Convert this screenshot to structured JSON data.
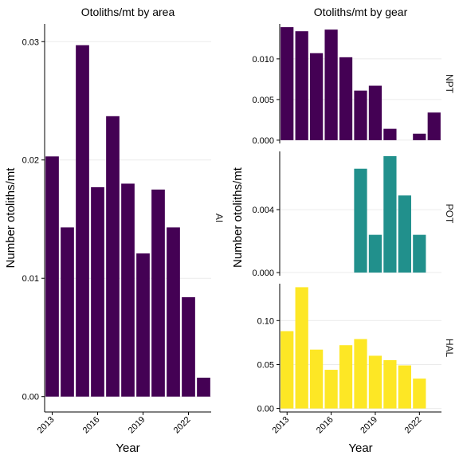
{
  "chart_data": [
    {
      "type": "bar",
      "title": "Otoliths/mt by area",
      "xlabel": "Year",
      "ylabel": "Number otoliths/mt",
      "ylim": [
        -0.0013,
        0.0315
      ],
      "yticks": [
        "0.00",
        "0.01",
        "0.02",
        "0.03"
      ],
      "ytick_values": [
        0,
        0.01,
        0.02,
        0.03
      ],
      "xticks": [
        2013,
        2016,
        2019,
        2022
      ],
      "color": "#440154",
      "series": [
        {
          "name": "AI",
          "x": [
            2013,
            2014,
            2015,
            2016,
            2017,
            2018,
            2019,
            2020,
            2021,
            2022,
            2023
          ],
          "values": [
            0.0203,
            0.0143,
            0.0297,
            0.0177,
            0.0237,
            0.018,
            0.0121,
            0.0175,
            0.0143,
            0.0084,
            0.0016
          ]
        }
      ]
    },
    {
      "type": "bar",
      "title": "Otoliths/mt by gear",
      "xlabel": "Year",
      "ylabel": "Number otoliths/mt",
      "xticks": [
        2013,
        2016,
        2019,
        2022
      ],
      "facets": [
        {
          "name": "NPT",
          "color": "#440154",
          "ylim": [
            -0.0004,
            0.0143
          ],
          "yticks": [
            "0.000",
            "0.005",
            "0.010"
          ],
          "ytick_values": [
            0,
            0.005,
            0.01
          ],
          "x": [
            2013,
            2014,
            2015,
            2016,
            2017,
            2018,
            2019,
            2020,
            2022,
            2023
          ],
          "values": [
            0.0139,
            0.0134,
            0.0107,
            0.0136,
            0.0102,
            0.0061,
            0.0067,
            0.0014,
            0.0008,
            0.0034
          ]
        },
        {
          "name": "POT",
          "color": "#21908C",
          "ylim": [
            -0.0002,
            0.0077
          ],
          "yticks": [
            "0.000",
            "0.004"
          ],
          "ytick_values": [
            0,
            0.004
          ],
          "x": [
            2018,
            2019,
            2020,
            2021,
            2022
          ],
          "values": [
            0.0066,
            0.0024,
            0.0074,
            0.0049,
            0.0024
          ]
        },
        {
          "name": "HAL",
          "color": "#FDE725",
          "ylim": [
            -0.004,
            0.142
          ],
          "yticks": [
            "0.00",
            "0.05",
            "0.10"
          ],
          "ytick_values": [
            0,
            0.05,
            0.1
          ],
          "x": [
            2013,
            2014,
            2015,
            2016,
            2017,
            2018,
            2019,
            2020,
            2021,
            2022
          ],
          "values": [
            0.088,
            0.138,
            0.067,
            0.044,
            0.072,
            0.079,
            0.06,
            0.055,
            0.049,
            0.034
          ]
        }
      ]
    }
  ]
}
